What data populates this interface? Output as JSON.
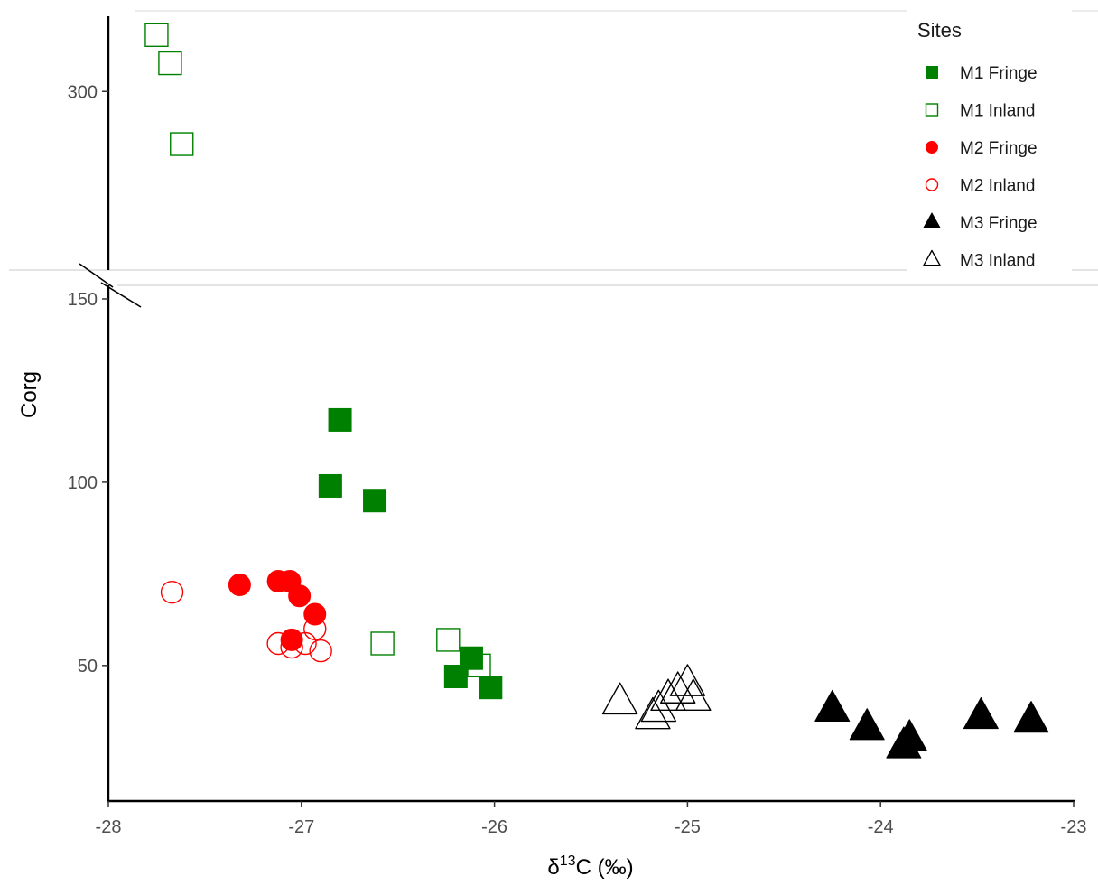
{
  "chart_data": {
    "type": "scatter",
    "xlabel": {
      "delta": "δ",
      "sup": "13",
      "rest": "C (‰)"
    },
    "ylabel": "Corg",
    "x_ticks": [
      -28,
      -27,
      -26,
      -25,
      -24,
      -23
    ],
    "y_ticks_lower": [
      50,
      100,
      150
    ],
    "y_ticks_upper": [
      300
    ],
    "xlim": [
      -28,
      -23
    ],
    "ylim_lower": [
      13,
      150
    ],
    "ylim_upper": [
      205,
      340
    ],
    "axis_break": "between 150 and 205",
    "grid": false,
    "legend": {
      "title": "Sites",
      "position": "top-right"
    },
    "series": [
      {
        "name": "M1 Fringe",
        "shape": "square",
        "filled": true,
        "color": "#008000",
        "points": [
          [
            -26.8,
            117
          ],
          [
            -26.85,
            99
          ],
          [
            -26.62,
            95
          ],
          [
            -26.12,
            52
          ],
          [
            -26.2,
            47
          ],
          [
            -26.02,
            44
          ]
        ]
      },
      {
        "name": "M1 Inland",
        "shape": "square",
        "filled": false,
        "color": "#008000",
        "points": [
          [
            -27.75,
            330
          ],
          [
            -27.68,
            315
          ],
          [
            -27.62,
            272
          ],
          [
            -26.58,
            56
          ],
          [
            -26.24,
            57
          ],
          [
            -26.08,
            50
          ]
        ]
      },
      {
        "name": "M2 Fringe",
        "shape": "circle",
        "filled": true,
        "color": "#ff0000",
        "points": [
          [
            -27.32,
            72
          ],
          [
            -27.12,
            73
          ],
          [
            -27.06,
            73
          ],
          [
            -27.01,
            69
          ],
          [
            -26.93,
            64
          ],
          [
            -27.05,
            57
          ]
        ]
      },
      {
        "name": "M2 Inland",
        "shape": "circle",
        "filled": false,
        "color": "#ff0000",
        "points": [
          [
            -27.67,
            70
          ],
          [
            -27.12,
            56
          ],
          [
            -27.05,
            55
          ],
          [
            -26.98,
            56
          ],
          [
            -26.93,
            60
          ],
          [
            -26.9,
            54
          ]
        ]
      },
      {
        "name": "M3 Fringe",
        "shape": "triangle",
        "filled": true,
        "color": "#000000",
        "points": [
          [
            -24.25,
            38
          ],
          [
            -24.07,
            33
          ],
          [
            -23.88,
            28
          ],
          [
            -23.85,
            30
          ],
          [
            -23.48,
            36
          ],
          [
            -23.22,
            35
          ]
        ]
      },
      {
        "name": "M3 Inland",
        "shape": "triangle",
        "filled": false,
        "color": "#000000",
        "points": [
          [
            -25.35,
            40
          ],
          [
            -25.18,
            36
          ],
          [
            -25.15,
            38
          ],
          [
            -25.1,
            41
          ],
          [
            -25.05,
            43
          ],
          [
            -25.0,
            45
          ],
          [
            -24.97,
            41
          ]
        ]
      }
    ]
  }
}
